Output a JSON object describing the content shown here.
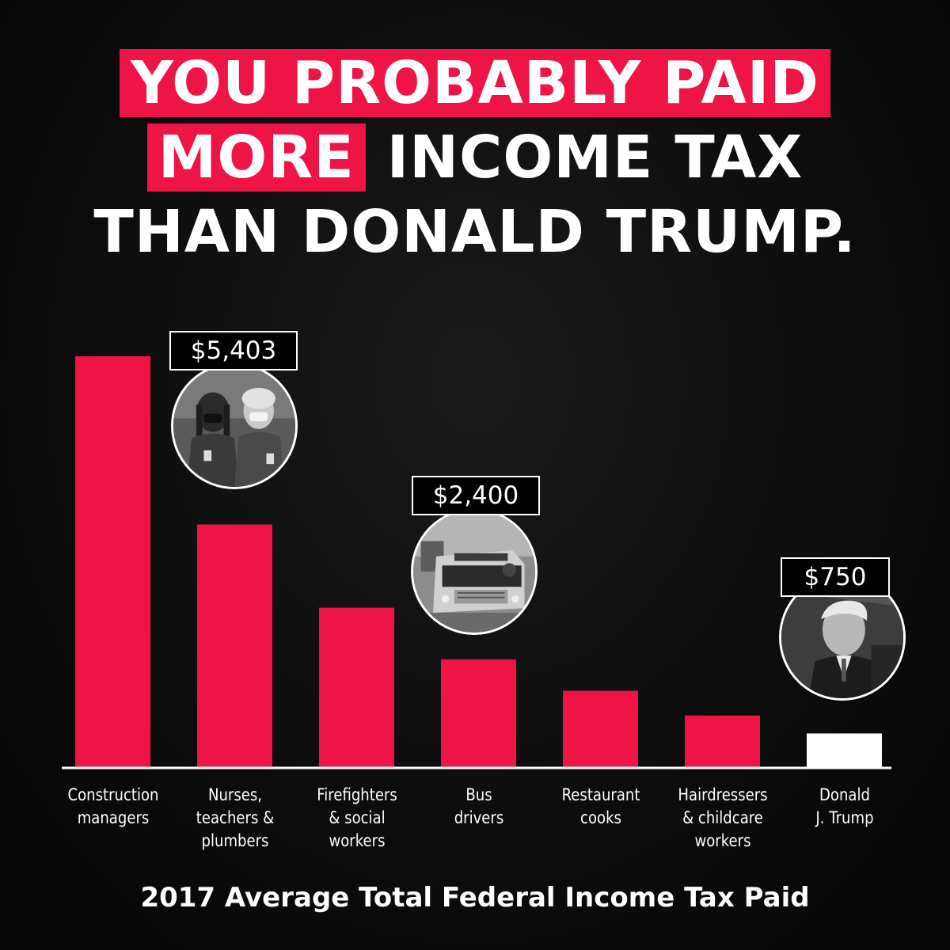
{
  "headline": {
    "line1": "YOU PROBABLY PAID",
    "line2_highlight": "MORE",
    "line2_rest": "INCOME TAX",
    "line3": "THAN DONALD TRUMP."
  },
  "colors": {
    "accent": "#ee1446",
    "highlight_bar": "#ffffff",
    "background": "#0b0b0b",
    "text": "#ffffff"
  },
  "chart_data": {
    "type": "bar",
    "title": "2017 Average Total Federal Income Tax Paid",
    "xlabel": "",
    "ylabel": "",
    "categories": [
      "Construction managers",
      "Nurses, teachers & plumbers",
      "Firefighters & social workers",
      "Bus drivers",
      "Restaurant cooks",
      "Hairdressers & childcare workers",
      "Donald J. Trump"
    ],
    "category_label_lines": [
      [
        "Construction",
        "managers"
      ],
      [
        "Nurses,",
        "teachers &",
        "plumbers"
      ],
      [
        "Firefighters",
        "& social",
        "workers"
      ],
      [
        "Bus",
        "drivers"
      ],
      [
        "Restaurant",
        "cooks"
      ],
      [
        "Hairdressers",
        "& childcare",
        "workers"
      ],
      [
        "Donald",
        "J. Trump"
      ]
    ],
    "values": [
      9150,
      5403,
      3550,
      2400,
      1700,
      1150,
      750
    ],
    "ylim": [
      0,
      9500
    ],
    "grid": false,
    "legend": "none",
    "annotations": [
      {
        "category": "Nurses, teachers & plumbers",
        "text": "$5,403",
        "photo": "nurses-photo"
      },
      {
        "category": "Bus drivers",
        "text": "$2,400",
        "photo": "school-bus-photo"
      },
      {
        "category": "Donald J. Trump",
        "text": "$750",
        "photo": "trump-photo"
      }
    ]
  }
}
